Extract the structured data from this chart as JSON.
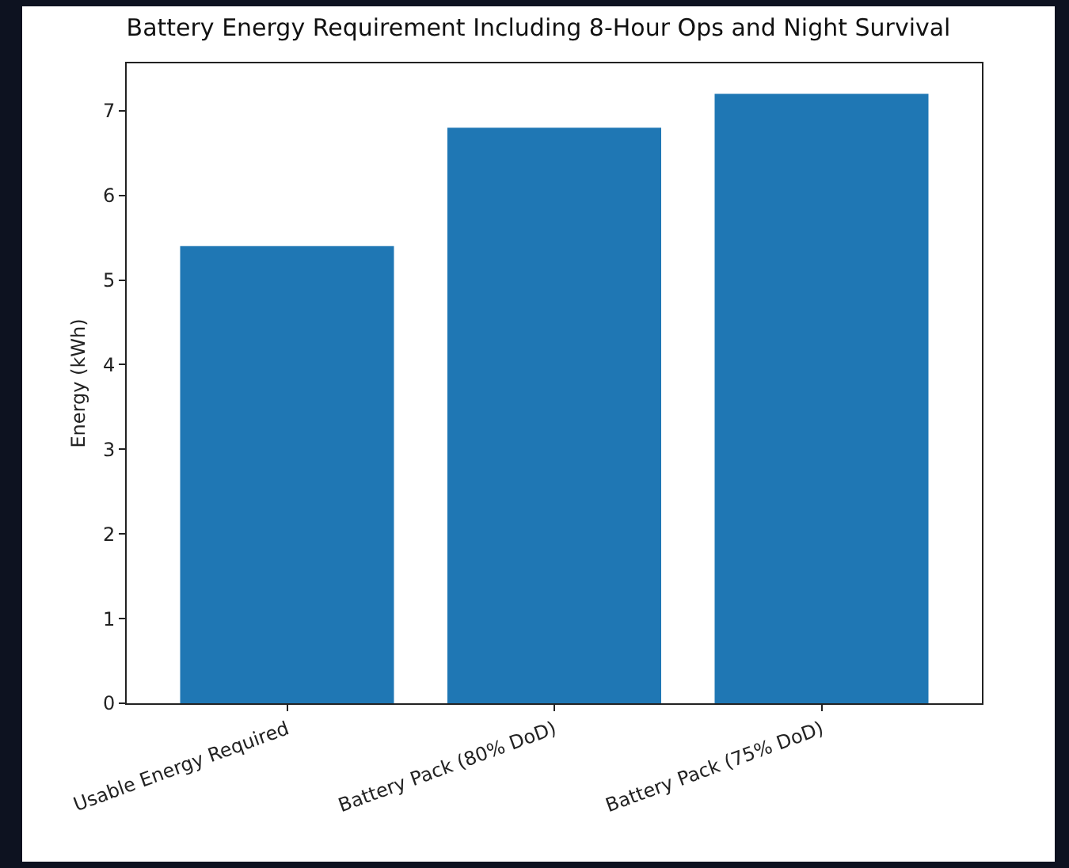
{
  "chart_data": {
    "type": "bar",
    "title": "Battery Energy Requirement Including 8-Hour Ops and Night Survival",
    "ylabel": "Energy (kWh)",
    "categories": [
      "Usable Energy Required",
      "Battery Pack (80% DoD)",
      "Battery Pack (75% DoD)"
    ],
    "values": [
      5.4,
      6.8,
      7.2
    ],
    "color": "#1f77b4",
    "ylim": [
      0,
      7.56
    ],
    "yticks": [
      0,
      1,
      2,
      3,
      4,
      5,
      6,
      7
    ],
    "grid": false,
    "legend": false
  }
}
